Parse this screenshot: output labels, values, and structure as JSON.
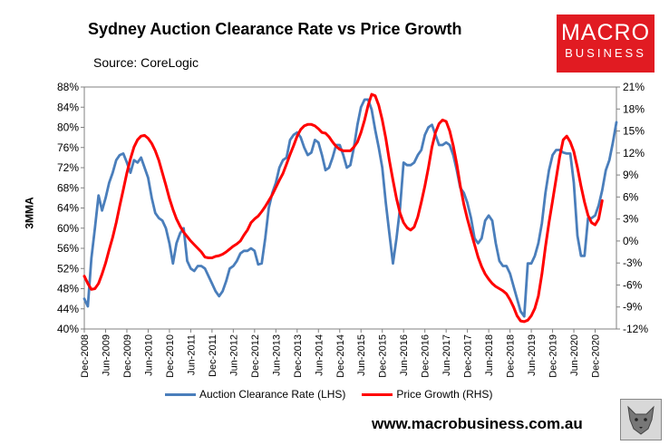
{
  "header": {
    "title": "Sydney Auction Clearance Rate vs Price Growth",
    "source": "Source: CoreLogic",
    "logo_line1": "MACRO",
    "logo_line2": "BUSINESS",
    "website": "www.macrobusiness.com.au",
    "logo_color": "#e11b22"
  },
  "chart_data": {
    "type": "line",
    "title": "Sydney Auction Clearance Rate vs Price Growth",
    "ylabel": "3MMA",
    "xlabel": "",
    "x_ticks": [
      "Dec-2008",
      "Jun-2009",
      "Dec-2009",
      "Jun-2010",
      "Dec-2010",
      "Jun-2011",
      "Dec-2011",
      "Jun-2012",
      "Dec-2012",
      "Jun-2013",
      "Dec-2013",
      "Jun-2014",
      "Dec-2014",
      "Jun-2015",
      "Dec-2015",
      "Jun-2016",
      "Dec-2016",
      "Jun-2017",
      "Dec-2017",
      "Jun-2018",
      "Dec-2018",
      "Jun-2019",
      "Dec-2019",
      "Jun-2020",
      "Dec-2020"
    ],
    "y_left": {
      "ticks": [
        "40%",
        "44%",
        "48%",
        "52%",
        "56%",
        "60%",
        "64%",
        "68%",
        "72%",
        "76%",
        "80%",
        "84%",
        "88%"
      ],
      "range": [
        40,
        88
      ]
    },
    "y_right": {
      "ticks": [
        "-12%",
        "-9%",
        "-6%",
        "-3%",
        "0%",
        "3%",
        "6%",
        "9%",
        "12%",
        "15%",
        "18%",
        "21%"
      ],
      "range": [
        -12,
        21
      ]
    },
    "x_range": [
      0,
      150
    ],
    "series": [
      {
        "name": "Auction Clearance Rate (LHS)",
        "axis": "left",
        "color": "#4a7ebb",
        "points": [
          [
            0,
            46
          ],
          [
            1,
            44.5
          ],
          [
            2,
            54
          ],
          [
            3,
            60
          ],
          [
            4,
            66.5
          ],
          [
            5,
            63.5
          ],
          [
            6,
            66
          ],
          [
            7,
            69
          ],
          [
            8,
            71
          ],
          [
            9,
            73.5
          ],
          [
            10,
            74.5
          ],
          [
            11,
            74.8
          ],
          [
            12,
            73
          ],
          [
            13,
            71
          ],
          [
            14,
            73.5
          ],
          [
            15,
            73
          ],
          [
            16,
            74
          ],
          [
            17,
            72
          ],
          [
            18,
            70
          ],
          [
            19,
            66
          ],
          [
            20,
            63
          ],
          [
            21,
            62
          ],
          [
            22,
            61.5
          ],
          [
            23,
            60
          ],
          [
            24,
            57
          ],
          [
            25,
            53
          ],
          [
            26,
            57
          ],
          [
            27,
            59
          ],
          [
            28,
            60
          ],
          [
            29,
            53.5
          ],
          [
            30,
            52
          ],
          [
            31,
            51.5
          ],
          [
            32,
            52.5
          ],
          [
            33,
            52.5
          ],
          [
            34,
            52
          ],
          [
            35,
            50.5
          ],
          [
            36,
            49
          ],
          [
            37,
            47.5
          ],
          [
            38,
            46.5
          ],
          [
            39,
            47.5
          ],
          [
            40,
            49.5
          ],
          [
            41,
            52
          ],
          [
            42,
            52.5
          ],
          [
            43,
            53.5
          ],
          [
            44,
            55
          ],
          [
            45,
            55.5
          ],
          [
            46,
            55.5
          ],
          [
            47,
            56
          ],
          [
            48,
            55.5
          ],
          [
            49,
            52.8
          ],
          [
            50,
            53
          ],
          [
            51,
            58
          ],
          [
            52,
            64
          ],
          [
            53,
            67
          ],
          [
            54,
            69
          ],
          [
            55,
            72
          ],
          [
            56,
            73.5
          ],
          [
            57,
            74
          ],
          [
            58,
            77.5
          ],
          [
            59,
            78.5
          ],
          [
            60,
            79
          ],
          [
            61,
            78
          ],
          [
            62,
            76
          ],
          [
            63,
            74.5
          ],
          [
            64,
            75
          ],
          [
            65,
            77.5
          ],
          [
            66,
            77
          ],
          [
            67,
            74.5
          ],
          [
            68,
            71.5
          ],
          [
            69,
            72
          ],
          [
            70,
            74
          ],
          [
            71,
            76.5
          ],
          [
            72,
            76.5
          ],
          [
            73,
            74.5
          ],
          [
            74,
            72
          ],
          [
            75,
            72.5
          ],
          [
            76,
            76
          ],
          [
            77,
            80.5
          ],
          [
            78,
            84
          ],
          [
            79,
            85.5
          ],
          [
            80,
            85.5
          ],
          [
            81,
            83.5
          ],
          [
            82,
            79.5
          ],
          [
            83,
            76
          ],
          [
            84,
            72
          ],
          [
            85,
            65
          ],
          [
            86,
            59
          ],
          [
            87,
            53
          ],
          [
            88,
            58
          ],
          [
            89,
            64
          ],
          [
            90,
            73
          ],
          [
            91,
            72.5
          ],
          [
            92,
            72.5
          ],
          [
            93,
            73
          ],
          [
            94,
            74.5
          ],
          [
            95,
            75.5
          ],
          [
            96,
            78.5
          ],
          [
            97,
            80
          ],
          [
            98,
            80.5
          ],
          [
            99,
            78.5
          ],
          [
            100,
            76.5
          ],
          [
            101,
            76.5
          ],
          [
            102,
            77
          ],
          [
            103,
            76.5
          ],
          [
            104,
            74.5
          ],
          [
            105,
            71.5
          ],
          [
            106,
            68
          ],
          [
            107,
            67
          ],
          [
            108,
            65
          ],
          [
            109,
            62
          ],
          [
            110,
            58
          ],
          [
            111,
            57
          ],
          [
            112,
            58
          ],
          [
            113,
            61.5
          ],
          [
            114,
            62.5
          ],
          [
            115,
            61.5
          ],
          [
            116,
            57
          ],
          [
            117,
            53.5
          ],
          [
            118,
            52.5
          ],
          [
            119,
            52.5
          ],
          [
            120,
            51
          ],
          [
            121,
            48.5
          ],
          [
            122,
            46
          ],
          [
            123,
            43.5
          ],
          [
            124,
            42.5
          ],
          [
            125,
            53
          ],
          [
            126,
            53
          ],
          [
            127,
            54.5
          ],
          [
            128,
            57
          ],
          [
            129,
            61
          ],
          [
            130,
            67
          ],
          [
            131,
            71.5
          ],
          [
            132,
            74.5
          ],
          [
            133,
            75.5
          ],
          [
            134,
            75.5
          ],
          [
            135,
            75
          ],
          [
            136,
            74.8
          ],
          [
            137,
            74.8
          ],
          [
            138,
            69
          ],
          [
            139,
            58.5
          ],
          [
            140,
            54.5
          ],
          [
            141,
            54.5
          ],
          [
            142,
            62
          ],
          [
            143,
            62
          ],
          [
            144,
            62.5
          ],
          [
            145,
            64.5
          ],
          [
            146,
            67.5
          ],
          [
            147,
            71.5
          ],
          [
            148,
            73.5
          ],
          [
            149,
            77
          ],
          [
            150,
            81
          ]
        ]
      },
      {
        "name": "Price Growth (RHS)",
        "axis": "right",
        "color": "#ff0000",
        "points": [
          [
            0,
            -4.8
          ],
          [
            1,
            -5.8
          ],
          [
            2,
            -6.6
          ],
          [
            3,
            -6.5
          ],
          [
            4,
            -5.8
          ],
          [
            5,
            -4.5
          ],
          [
            6,
            -3
          ],
          [
            7,
            -1.2
          ],
          [
            8,
            0.5
          ],
          [
            9,
            2.5
          ],
          [
            10,
            4.8
          ],
          [
            11,
            7
          ],
          [
            12,
            9.3
          ],
          [
            13,
            11.2
          ],
          [
            14,
            12.8
          ],
          [
            15,
            13.8
          ],
          [
            16,
            14.3
          ],
          [
            17,
            14.4
          ],
          [
            18,
            14
          ],
          [
            19,
            13.3
          ],
          [
            20,
            12.3
          ],
          [
            21,
            11
          ],
          [
            22,
            9.3
          ],
          [
            23,
            7.6
          ],
          [
            24,
            5.8
          ],
          [
            25,
            4.3
          ],
          [
            26,
            3
          ],
          [
            27,
            2
          ],
          [
            28,
            1.2
          ],
          [
            29,
            0.6
          ],
          [
            30,
            0
          ],
          [
            31,
            -0.5
          ],
          [
            32,
            -1
          ],
          [
            33,
            -1.5
          ],
          [
            34,
            -2.2
          ],
          [
            35,
            -2.3
          ],
          [
            36,
            -2.3
          ],
          [
            37,
            -2.1
          ],
          [
            38,
            -2
          ],
          [
            39,
            -1.8
          ],
          [
            40,
            -1.5
          ],
          [
            41,
            -1.1
          ],
          [
            42,
            -0.7
          ],
          [
            43,
            -0.4
          ],
          [
            44,
            0
          ],
          [
            45,
            0.8
          ],
          [
            46,
            1.5
          ],
          [
            47,
            2.5
          ],
          [
            48,
            3
          ],
          [
            49,
            3.4
          ],
          [
            50,
            4
          ],
          [
            51,
            4.7
          ],
          [
            52,
            5.5
          ],
          [
            53,
            6.3
          ],
          [
            54,
            7.3
          ],
          [
            55,
            8.3
          ],
          [
            56,
            9.2
          ],
          [
            57,
            10.5
          ],
          [
            58,
            11.8
          ],
          [
            59,
            13
          ],
          [
            60,
            14.3
          ],
          [
            61,
            15.2
          ],
          [
            62,
            15.7
          ],
          [
            63,
            15.9
          ],
          [
            64,
            15.9
          ],
          [
            65,
            15.7
          ],
          [
            66,
            15.3
          ],
          [
            67,
            14.8
          ],
          [
            68,
            14.7
          ],
          [
            69,
            14.2
          ],
          [
            70,
            13.5
          ],
          [
            71,
            12.9
          ],
          [
            72,
            12.5
          ],
          [
            73,
            12.3
          ],
          [
            74,
            12.3
          ],
          [
            75,
            12.3
          ],
          [
            76,
            12.8
          ],
          [
            77,
            13.5
          ],
          [
            78,
            14.8
          ],
          [
            79,
            16.5
          ],
          [
            80,
            18.5
          ],
          [
            81,
            20
          ],
          [
            82,
            19.8
          ],
          [
            83,
            18.5
          ],
          [
            84,
            16.5
          ],
          [
            85,
            14
          ],
          [
            86,
            11
          ],
          [
            87,
            8.3
          ],
          [
            88,
            5.8
          ],
          [
            89,
            3.8
          ],
          [
            90,
            2.5
          ],
          [
            91,
            1.8
          ],
          [
            92,
            1.5
          ],
          [
            93,
            1.9
          ],
          [
            94,
            3.3
          ],
          [
            95,
            5.3
          ],
          [
            96,
            7.5
          ],
          [
            97,
            10
          ],
          [
            98,
            12.8
          ],
          [
            99,
            14.8
          ],
          [
            100,
            16
          ],
          [
            101,
            16.5
          ],
          [
            102,
            16.3
          ],
          [
            103,
            15
          ],
          [
            104,
            13
          ],
          [
            105,
            10.5
          ],
          [
            106,
            7.5
          ],
          [
            107,
            5
          ],
          [
            108,
            3
          ],
          [
            109,
            1.2
          ],
          [
            110,
            -0.5
          ],
          [
            111,
            -2.2
          ],
          [
            112,
            -3.5
          ],
          [
            113,
            -4.5
          ],
          [
            114,
            -5.2
          ],
          [
            115,
            -5.8
          ],
          [
            116,
            -6.2
          ],
          [
            117,
            -6.5
          ],
          [
            118,
            -6.8
          ],
          [
            119,
            -7.2
          ],
          [
            120,
            -8
          ],
          [
            121,
            -9
          ],
          [
            122,
            -10.2
          ],
          [
            123,
            -10.9
          ],
          [
            124,
            -11
          ],
          [
            125,
            -10.8
          ],
          [
            126,
            -10.2
          ],
          [
            127,
            -9.2
          ],
          [
            128,
            -7.5
          ],
          [
            129,
            -4.5
          ],
          [
            130,
            -0.8
          ],
          [
            131,
            2.5
          ],
          [
            132,
            5.5
          ],
          [
            133,
            8.5
          ],
          [
            134,
            11.5
          ],
          [
            135,
            13.8
          ],
          [
            136,
            14.3
          ],
          [
            137,
            13.5
          ],
          [
            138,
            12.2
          ],
          [
            139,
            10
          ],
          [
            140,
            7.5
          ],
          [
            141,
            5.3
          ],
          [
            142,
            3.5
          ],
          [
            143,
            2.5
          ],
          [
            144,
            2.2
          ],
          [
            145,
            3
          ],
          [
            146,
            5.5
          ]
        ]
      }
    ],
    "legend_position": "bottom",
    "grid": false
  }
}
